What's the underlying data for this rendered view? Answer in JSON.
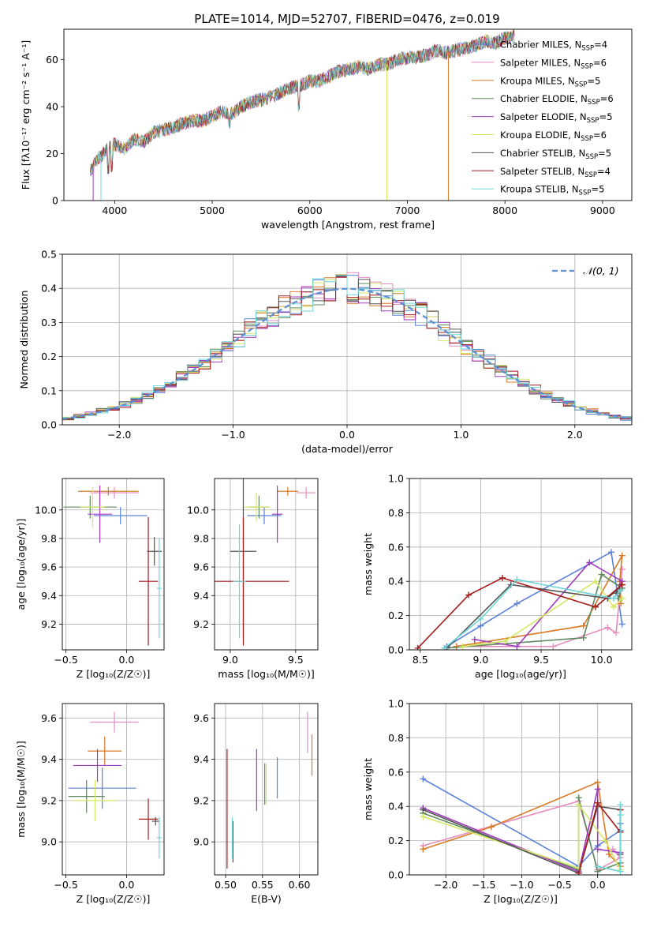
{
  "figure_title": "PLATE=1014, MJD=52707, FIBERID=0476, z=0.019",
  "model_colors": [
    "#5b82d9",
    "#e68cc0",
    "#d97a27",
    "#5e8a5e",
    "#a03cc0",
    "#d4e866",
    "#555555",
    "#a41c1c",
    "#6dd5d8"
  ],
  "chart_data": [
    {
      "id": "spectrum",
      "type": "line",
      "title": "PLATE=1014, MJD=52707, FIBERID=0476, z=0.019",
      "xlabel": "wavelength [Angstrom, rest frame]",
      "ylabel": "Flux [fλ10⁻¹⁷ erg cm⁻² s⁻¹ A⁻¹]",
      "xlim": [
        3480,
        9300
      ],
      "ylim": [
        0,
        73
      ],
      "xticks": [
        4000,
        5000,
        6000,
        7000,
        8000,
        9000
      ],
      "yticks": [
        0,
        20,
        40,
        60
      ],
      "legend_position": "upper-right",
      "legend": [
        {
          "base": "Chabrier MILES, N",
          "sub": "SSP",
          "tail": "=4"
        },
        {
          "base": "Salpeter MILES, N",
          "sub": "SSP",
          "tail": "=6"
        },
        {
          "base": "Kroupa MILES, N",
          "sub": "SSP",
          "tail": "=5"
        },
        {
          "base": "Chabrier ELODIE, N",
          "sub": "SSP",
          "tail": "=6"
        },
        {
          "base": "Salpeter ELODIE, N",
          "sub": "SSP",
          "tail": "=5"
        },
        {
          "base": "Kroupa ELODIE, N",
          "sub": "SSP",
          "tail": "=6"
        },
        {
          "base": "Chabrier STELIB, N",
          "sub": "SSP",
          "tail": "=5"
        },
        {
          "base": "Salpeter STELIB, N",
          "sub": "SSP",
          "tail": "=4"
        },
        {
          "base": "Kroupa STELIB, N",
          "sub": "SSP",
          "tail": "=5"
        }
      ],
      "x": [
        3750,
        3800,
        3900,
        4000,
        4100,
        4200,
        4300,
        4400,
        4500,
        4600,
        4700,
        4800,
        4900,
        5000,
        5100,
        5200,
        5300,
        5400,
        5500,
        5600,
        5700,
        5800,
        5900,
        6000,
        6100,
        6200,
        6300,
        6400,
        6500,
        6600,
        6700,
        6800,
        6900,
        7000,
        7100,
        7200,
        7300,
        7400,
        7500,
        7600,
        7700,
        7800,
        7900,
        8000,
        8100
      ],
      "y": [
        12,
        16,
        21,
        24,
        22,
        26,
        25,
        29,
        30,
        31,
        33,
        34,
        34,
        36,
        38,
        37,
        40,
        42,
        43,
        44,
        46,
        48,
        49,
        51,
        51,
        53,
        55,
        56,
        57,
        56,
        58,
        58,
        60,
        61,
        61,
        62,
        64,
        63,
        64,
        65,
        66,
        68,
        67,
        69,
        70
      ],
      "edge_lines": [
        {
          "series": 4,
          "x": 3780,
          "y_bottom": 0
        },
        {
          "series": 8,
          "x": 3860,
          "y_bottom": 0
        },
        {
          "series": 5,
          "x": 6790,
          "y_bottom": 0
        },
        {
          "series": 2,
          "x": 7420,
          "y_bottom": 0
        }
      ]
    },
    {
      "id": "residuals",
      "type": "step",
      "xlabel": "(data-model)/error",
      "ylabel": "Normed distribution",
      "xlim": [
        -2.5,
        2.5
      ],
      "ylim": [
        0,
        0.5
      ],
      "xticks": [
        -2,
        -1,
        0,
        1,
        2
      ],
      "yticks": [
        0.0,
        0.1,
        0.2,
        0.3,
        0.4,
        0.5
      ],
      "grid": true,
      "legend_position": "upper-right",
      "reference_label": "𝒩(0, 1)",
      "reference": {
        "mean": 0,
        "sigma": 1
      }
    },
    {
      "id": "age-vs-Z",
      "type": "errorbar",
      "xlabel": "Z [log₁₀(Z/Z☉)]",
      "ylabel": "age  [log₁₀(age/yr)]",
      "xlim": [
        -0.53,
        0.31
      ],
      "ylim": [
        9.02,
        10.22
      ],
      "xticks": [
        -0.5,
        0.0
      ],
      "yticks": [
        9.2,
        9.4,
        9.6,
        9.8,
        10.0
      ],
      "grid": true,
      "points": [
        {
          "s": 0,
          "x": -0.05,
          "y": 9.96,
          "xerr": 0.22,
          "yerr": 0.06
        },
        {
          "s": 1,
          "x": -0.1,
          "y": 10.12,
          "xerr": 0.2,
          "yerr": 0.04
        },
        {
          "s": 2,
          "x": -0.15,
          "y": 10.13,
          "xerr": 0.25,
          "yerr": 0.03
        },
        {
          "s": 3,
          "x": -0.3,
          "y": 10.02,
          "xerr": 0.22,
          "yerr": 0.08
        },
        {
          "s": 4,
          "x": -0.22,
          "y": 9.97,
          "xerr": 0.1,
          "yerr": 0.2
        },
        {
          "s": 5,
          "x": -0.28,
          "y": 10.02,
          "xerr": 0.1,
          "yerr": 0.14
        },
        {
          "s": 6,
          "x": 0.23,
          "y": 9.71,
          "xerr": 0.06,
          "yerr": 0.1
        },
        {
          "s": 7,
          "x": 0.18,
          "y": 9.5,
          "xerr": 0.08,
          "yerr": 0.45
        },
        {
          "s": 8,
          "x": 0.27,
          "y": 9.45,
          "xerr": 0.02,
          "yerr": 0.35
        }
      ]
    },
    {
      "id": "age-vs-mass",
      "type": "errorbar",
      "xlabel": "mass [log₁₀(M/M☉)]",
      "ylabel": "",
      "xlim": [
        8.88,
        9.67
      ],
      "ylim": [
        9.02,
        10.22
      ],
      "xticks": [
        9.0,
        9.5
      ],
      "yticks": [
        9.2,
        9.4,
        9.6,
        9.8,
        10.0
      ],
      "grid": true,
      "points": [
        {
          "s": 0,
          "x": 9.26,
          "y": 9.96,
          "xerr": 0.13,
          "yerr": 0.06
        },
        {
          "s": 1,
          "x": 9.58,
          "y": 10.12,
          "xerr": 0.07,
          "yerr": 0.04
        },
        {
          "s": 2,
          "x": 9.44,
          "y": 10.13,
          "xerr": 0.08,
          "yerr": 0.03
        },
        {
          "s": 3,
          "x": 9.22,
          "y": 10.02,
          "xerr": 0.08,
          "yerr": 0.08
        },
        {
          "s": 4,
          "x": 9.36,
          "y": 9.97,
          "xerr": 0.04,
          "yerr": 0.2
        },
        {
          "s": 5,
          "x": 9.2,
          "y": 10.02,
          "xerr": 0.1,
          "yerr": 0.1
        },
        {
          "s": 6,
          "x": 9.1,
          "y": 9.71,
          "xerr": 0.1,
          "yerr": 0.6
        },
        {
          "s": 7,
          "x": 9.1,
          "y": 9.5,
          "xerr": 0.35,
          "yerr": 0.45
        },
        {
          "s": 8,
          "x": 9.07,
          "y": 9.5,
          "xerr": 0.05,
          "yerr": 0.4
        }
      ]
    },
    {
      "id": "massweight-vs-age",
      "type": "line",
      "xlabel": "age  [log₁₀(age/yr)]",
      "ylabel": "mass weight",
      "xlim": [
        8.41,
        10.25
      ],
      "ylim": [
        0,
        1.0
      ],
      "xticks": [
        8.5,
        9.0,
        9.5,
        10.0
      ],
      "yticks": [
        0.0,
        0.2,
        0.4,
        0.6,
        0.8,
        1.0
      ],
      "grid": true,
      "series": [
        {
          "s": 0,
          "x": [
            8.72,
            9.0,
            9.3,
            10.08,
            10.17
          ],
          "y": [
            0.02,
            0.14,
            0.27,
            0.57,
            0.15
          ]
        },
        {
          "s": 1,
          "x": [
            8.8,
            9.6,
            10.05,
            10.12,
            10.17
          ],
          "y": [
            0.02,
            0.02,
            0.13,
            0.1,
            0.47
          ]
        },
        {
          "s": 2,
          "x": [
            8.8,
            9.85,
            10.17,
            10.15,
            10.16
          ],
          "y": [
            0.02,
            0.14,
            0.55,
            0.4,
            0.27
          ]
        },
        {
          "s": 3,
          "x": [
            8.7,
            9.85,
            10.0,
            10.17,
            10.14
          ],
          "y": [
            0.01,
            0.07,
            0.44,
            0.36,
            0.3
          ]
        },
        {
          "s": 4,
          "x": [
            8.95,
            9.3,
            9.9,
            10.17,
            10.16
          ],
          "y": [
            0.06,
            0.02,
            0.51,
            0.4,
            0.38
          ]
        },
        {
          "s": 5,
          "x": [
            8.85,
            9.2,
            9.95,
            10.1,
            10.17
          ],
          "y": [
            0.02,
            0.05,
            0.4,
            0.25,
            0.3
          ]
        },
        {
          "s": 6,
          "x": [
            8.72,
            9.25,
            10.05,
            10.17,
            10.12
          ],
          "y": [
            0.01,
            0.38,
            0.3,
            0.38,
            0.33
          ]
        },
        {
          "s": 7,
          "x": [
            8.48,
            8.9,
            9.18,
            9.95,
            10.17
          ],
          "y": [
            0.01,
            0.32,
            0.42,
            0.25,
            0.38
          ]
        },
        {
          "s": 8,
          "x": [
            8.7,
            9.0,
            9.3,
            10.1,
            10.16
          ],
          "y": [
            0.01,
            0.18,
            0.41,
            0.3,
            0.35
          ]
        }
      ]
    },
    {
      "id": "mass-vs-Z",
      "type": "errorbar",
      "xlabel": "Z [log₁₀(Z/Z☉)]",
      "ylabel": "mass [log₁₀(M/M☉)]",
      "xlim": [
        -0.53,
        0.31
      ],
      "ylim": [
        8.84,
        9.67
      ],
      "xticks": [
        -0.5,
        0.0
      ],
      "yticks": [
        9.0,
        9.2,
        9.4,
        9.6
      ],
      "grid": true,
      "points": [
        {
          "s": 0,
          "x": -0.2,
          "y": 9.26,
          "xerr": 0.28,
          "yerr": 0.1
        },
        {
          "s": 1,
          "x": -0.1,
          "y": 9.58,
          "xerr": 0.2,
          "yerr": 0.05
        },
        {
          "s": 2,
          "x": -0.18,
          "y": 9.44,
          "xerr": 0.14,
          "yerr": 0.07
        },
        {
          "s": 3,
          "x": -0.33,
          "y": 9.22,
          "xerr": 0.15,
          "yerr": 0.08
        },
        {
          "s": 4,
          "x": -0.24,
          "y": 9.37,
          "xerr": 0.2,
          "yerr": 0.08
        },
        {
          "s": 5,
          "x": -0.26,
          "y": 9.2,
          "xerr": 0.18,
          "yerr": 0.1
        },
        {
          "s": 6,
          "x": 0.24,
          "y": 9.1,
          "xerr": 0.03,
          "yerr": 0.02
        },
        {
          "s": 7,
          "x": 0.18,
          "y": 9.11,
          "xerr": 0.08,
          "yerr": 0.1
        },
        {
          "s": 8,
          "x": 0.27,
          "y": 9.02,
          "xerr": 0.02,
          "yerr": 0.1
        }
      ]
    },
    {
      "id": "mass-vs-EBV",
      "type": "errorbar",
      "xlabel": "E(B-V)",
      "ylabel": "",
      "xlim": [
        0.485,
        0.625
      ],
      "ylim": [
        8.84,
        9.67
      ],
      "xticks": [
        0.5,
        0.55,
        0.6
      ],
      "yticks": [
        9.0,
        9.2,
        9.4,
        9.6
      ],
      "grid": true,
      "points": [
        {
          "s": 0,
          "x": 0.57,
          "y": 9.31,
          "xerr": 0,
          "yerr": 0.1
        },
        {
          "s": 1,
          "x": 0.611,
          "y": 9.53,
          "xerr": 0,
          "yerr": 0.1
        },
        {
          "s": 2,
          "x": 0.617,
          "y": 9.42,
          "xerr": 0,
          "yerr": 0.1
        },
        {
          "s": 3,
          "x": 0.553,
          "y": 9.28,
          "xerr": 0,
          "yerr": 0.1
        },
        {
          "s": 4,
          "x": 0.542,
          "y": 9.3,
          "xerr": 0,
          "yerr": 0.15
        },
        {
          "s": 5,
          "x": 0.555,
          "y": 9.28,
          "xerr": 0,
          "yerr": 0.1
        },
        {
          "s": 6,
          "x": 0.51,
          "y": 9.0,
          "xerr": 0,
          "yerr": 0.1
        },
        {
          "s": 7,
          "x": 0.502,
          "y": 9.16,
          "xerr": 0,
          "yerr": 0.29
        },
        {
          "s": 8,
          "x": 0.509,
          "y": 9.02,
          "xerr": 0,
          "yerr": 0.1
        }
      ]
    },
    {
      "id": "massweight-vs-Z",
      "type": "line",
      "xlabel": "Z [log₁₀(Z/Z☉)]",
      "ylabel": "mass weight",
      "xlim": [
        -2.48,
        0.45
      ],
      "ylim": [
        0,
        1.0
      ],
      "xticks": [
        -2.0,
        -1.5,
        -1.0,
        -0.5,
        0.0
      ],
      "yticks": [
        0.0,
        0.2,
        0.4,
        0.6,
        0.8,
        1.0
      ],
      "grid": true,
      "series": [
        {
          "s": 0,
          "x": [
            -2.3,
            -0.25,
            0.0,
            0.3,
            0.3
          ],
          "y": [
            0.56,
            0.05,
            0.17,
            0.26,
            0.3
          ]
        },
        {
          "s": 1,
          "x": [
            -2.3,
            -0.25,
            0.0,
            0.3,
            0.2
          ],
          "y": [
            0.17,
            0.43,
            0.03,
            0.1,
            0.15
          ]
        },
        {
          "s": 2,
          "x": [
            -2.3,
            -1.4,
            0.0,
            0.15,
            0.3
          ],
          "y": [
            0.15,
            0.28,
            0.54,
            0.12,
            0.05
          ]
        },
        {
          "s": 3,
          "x": [
            -2.3,
            -0.25,
            -0.25,
            0.0,
            0.3
          ],
          "y": [
            0.36,
            0.03,
            0.45,
            0.02,
            0.07
          ]
        },
        {
          "s": 4,
          "x": [
            -2.3,
            -0.25,
            0.0,
            0.0,
            0.3
          ],
          "y": [
            0.39,
            0.02,
            0.5,
            0.15,
            0.13
          ]
        },
        {
          "s": 5,
          "x": [
            -2.3,
            -0.25,
            -0.25,
            0.1,
            0.3
          ],
          "y": [
            0.34,
            0.04,
            0.41,
            0.2,
            0.03
          ]
        },
        {
          "s": 6,
          "x": [
            -2.3,
            -0.25,
            0.0,
            0.3,
            0.3
          ],
          "y": [
            0.38,
            0.01,
            0.4,
            0.38,
            0.12
          ]
        },
        {
          "s": 7,
          "x": [
            -0.25,
            0.0,
            0.3,
            0.3
          ],
          "y": [
            0.01,
            0.42,
            0.25,
            0.38
          ]
        },
        {
          "s": 8,
          "x": [
            0.0,
            0.3,
            0.3,
            0.3
          ],
          "y": [
            0.05,
            0.02,
            0.41,
            0.35
          ]
        }
      ]
    }
  ]
}
